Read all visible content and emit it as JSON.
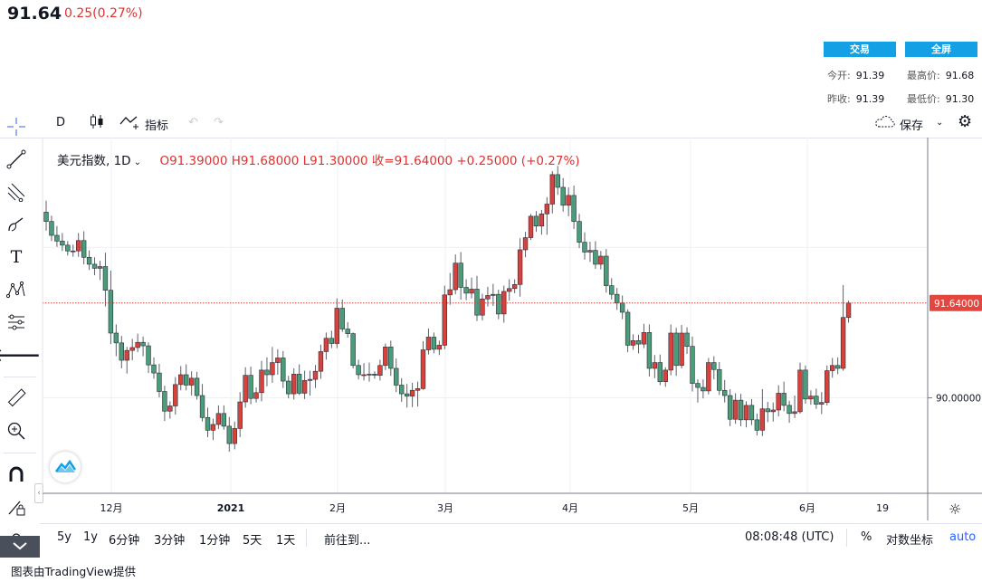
{
  "header": {
    "price": "91.64",
    "change": "0.25(0.27%)",
    "trade_button": "交易",
    "fullscreen_button": "全屏",
    "open_label": "今开:",
    "open_value": "91.39",
    "high_label": "最高价:",
    "high_value": "91.68",
    "prev_label": "昨收:",
    "prev_value": "91.39",
    "low_label": "最低价:",
    "low_value": "91.30"
  },
  "toolbar": {
    "interval": "D",
    "indicators": "指标",
    "save": "保存"
  },
  "legend": {
    "symbol": "美元指数, 1D",
    "ohlc": "O91.39000  H91.68000  L91.30000  收=91.64000  +0.25000 (+0.27%)"
  },
  "bottom": {
    "ranges": [
      "5y",
      "1y",
      "6分钟",
      "3分钟",
      "1分钟",
      "5天",
      "1天"
    ],
    "goto": "前往到...",
    "time": "08:08:48 (UTC)",
    "percent": "%",
    "log": "对数坐标",
    "auto": "auto"
  },
  "credit": "图表由TradingView提供",
  "colors": {
    "up": "#ef5350",
    "down": "#26a69a",
    "upFill": "#d8423c",
    "downFill": "#4b9c79",
    "accent": "#13a0e4"
  },
  "chart_data": {
    "type": "candlestick",
    "x_ticks": [
      "12月",
      "2021",
      "2月",
      "3月",
      "4月",
      "5月",
      "6月",
      "19"
    ],
    "y_ticks": [
      "90.00000"
    ],
    "last_price_label": "91.64000",
    "last_price": 91.64,
    "ylim": [
      88.35,
      94.5
    ],
    "candles": [
      [
        93.21,
        93.41,
        92.89,
        93.05
      ],
      [
        93.05,
        93.15,
        92.71,
        92.81
      ],
      [
        92.81,
        92.97,
        92.61,
        92.71
      ],
      [
        92.71,
        92.85,
        92.54,
        92.64
      ],
      [
        92.64,
        92.71,
        92.46,
        92.54
      ],
      [
        92.54,
        92.65,
        92.44,
        92.54
      ],
      [
        92.54,
        92.85,
        92.44,
        92.72
      ],
      [
        92.72,
        92.88,
        92.31,
        92.43
      ],
      [
        92.43,
        92.55,
        92.21,
        92.31
      ],
      [
        92.31,
        92.43,
        92.12,
        92.24
      ],
      [
        92.24,
        92.37,
        92.04,
        92.27
      ],
      [
        92.27,
        92.51,
        91.58,
        91.86
      ],
      [
        91.86,
        92.2,
        90.93,
        91.12
      ],
      [
        91.12,
        91.27,
        90.72,
        90.95
      ],
      [
        90.95,
        91.07,
        90.51,
        90.65
      ],
      [
        90.65,
        90.88,
        90.42,
        90.82
      ],
      [
        90.82,
        91.02,
        90.65,
        90.87
      ],
      [
        90.87,
        91.11,
        90.79,
        90.96
      ],
      [
        90.96,
        91.06,
        90.72,
        90.9
      ],
      [
        90.9,
        90.96,
        90.43,
        90.57
      ],
      [
        90.57,
        90.7,
        90.33,
        90.43
      ],
      [
        90.43,
        90.59,
        90.01,
        90.11
      ],
      [
        90.11,
        90.21,
        89.6,
        89.77
      ],
      [
        89.77,
        89.94,
        89.64,
        89.86
      ],
      [
        89.86,
        90.36,
        89.71,
        90.23
      ],
      [
        90.23,
        90.55,
        90.13,
        90.4
      ],
      [
        90.4,
        90.58,
        90.13,
        90.22
      ],
      [
        90.22,
        90.46,
        90.04,
        90.34
      ],
      [
        90.34,
        90.45,
        89.97,
        90.04
      ],
      [
        90.04,
        90.24,
        89.59,
        89.66
      ],
      [
        89.66,
        89.83,
        89.32,
        89.44
      ],
      [
        89.44,
        89.64,
        89.27,
        89.54
      ],
      [
        89.54,
        89.87,
        89.46,
        89.73
      ],
      [
        89.73,
        89.87,
        89.45,
        89.51
      ],
      [
        89.51,
        89.67,
        89.07,
        89.21
      ],
      [
        89.21,
        89.59,
        89.11,
        89.47
      ],
      [
        89.47,
        90.1,
        89.32,
        89.93
      ],
      [
        89.93,
        90.53,
        89.83,
        90.39
      ],
      [
        90.39,
        90.54,
        89.89,
        89.99
      ],
      [
        89.99,
        90.18,
        89.92,
        90.09
      ],
      [
        90.09,
        90.64,
        89.94,
        90.48
      ],
      [
        90.48,
        90.7,
        90.2,
        90.4
      ],
      [
        90.4,
        90.88,
        90.26,
        90.61
      ],
      [
        90.61,
        90.84,
        90.4,
        90.69
      ],
      [
        90.69,
        90.81,
        90.17,
        90.29
      ],
      [
        90.29,
        90.38,
        89.99,
        90.07
      ],
      [
        90.07,
        90.51,
        89.97,
        90.41
      ],
      [
        90.41,
        90.58,
        90.05,
        90.08
      ],
      [
        90.08,
        90.47,
        89.98,
        90.3
      ],
      [
        90.3,
        90.47,
        90.04,
        90.32
      ],
      [
        90.32,
        90.57,
        90.17,
        90.46
      ],
      [
        90.46,
        90.92,
        90.33,
        90.8
      ],
      [
        90.8,
        91.13,
        90.66,
        91.03
      ],
      [
        91.03,
        91.16,
        90.86,
        90.94
      ],
      [
        90.94,
        91.72,
        90.86,
        91.55
      ],
      [
        91.55,
        91.7,
        91.14,
        91.19
      ],
      [
        91.19,
        91.31,
        91.04,
        91.11
      ],
      [
        91.11,
        91.13,
        90.51,
        90.56
      ],
      [
        90.56,
        90.66,
        90.32,
        90.4
      ],
      [
        90.4,
        90.6,
        90.3,
        90.4
      ],
      [
        90.4,
        90.61,
        90.28,
        90.41
      ],
      [
        90.41,
        90.46,
        90.33,
        90.39
      ],
      [
        90.39,
        90.66,
        90.3,
        90.56
      ],
      [
        90.56,
        90.94,
        90.48,
        90.88
      ],
      [
        90.88,
        90.99,
        90.38,
        90.51
      ],
      [
        90.51,
        90.68,
        90.1,
        90.22
      ],
      [
        90.22,
        90.34,
        89.93,
        90.07
      ],
      [
        90.07,
        90.24,
        89.83,
        90.03
      ],
      [
        90.03,
        90.26,
        89.84,
        90.13
      ],
      [
        90.13,
        90.28,
        89.85,
        90.16
      ],
      [
        90.16,
        90.98,
        90.14,
        90.83
      ],
      [
        90.83,
        91.2,
        90.75,
        91.05
      ],
      [
        91.05,
        91.13,
        90.77,
        90.84
      ],
      [
        90.84,
        90.99,
        90.74,
        90.91
      ],
      [
        90.91,
        91.94,
        90.84,
        91.78
      ],
      [
        91.78,
        92.16,
        91.61,
        91.87
      ],
      [
        91.87,
        92.48,
        91.79,
        92.33
      ],
      [
        92.33,
        92.52,
        91.7,
        91.91
      ],
      [
        91.91,
        92.05,
        91.69,
        91.81
      ],
      [
        91.81,
        92.08,
        91.72,
        91.88
      ],
      [
        91.88,
        92.11,
        91.33,
        91.43
      ],
      [
        91.43,
        91.8,
        91.34,
        91.71
      ],
      [
        91.71,
        91.92,
        91.58,
        91.77
      ],
      [
        91.77,
        91.97,
        91.59,
        91.79
      ],
      [
        91.79,
        91.87,
        91.36,
        91.45
      ],
      [
        91.45,
        91.94,
        91.3,
        91.84
      ],
      [
        91.84,
        92.05,
        91.68,
        91.89
      ],
      [
        91.89,
        92.05,
        91.81,
        91.96
      ],
      [
        91.96,
        92.76,
        91.75,
        92.56
      ],
      [
        92.56,
        92.87,
        92.43,
        92.77
      ],
      [
        92.77,
        93.18,
        92.73,
        93.14
      ],
      [
        93.14,
        93.23,
        92.87,
        92.97
      ],
      [
        92.97,
        93.25,
        92.82,
        93.18
      ],
      [
        93.18,
        93.47,
        92.82,
        93.35
      ],
      [
        93.35,
        93.92,
        93.19,
        93.86
      ],
      [
        93.86,
        94.01,
        93.51,
        93.64
      ],
      [
        93.64,
        93.8,
        93.22,
        93.33
      ],
      [
        93.33,
        93.64,
        93.14,
        93.5
      ],
      [
        93.5,
        93.67,
        92.92,
        93.05
      ],
      [
        93.05,
        93.18,
        92.59,
        92.69
      ],
      [
        92.69,
        92.86,
        92.39,
        92.52
      ],
      [
        92.52,
        92.7,
        92.35,
        92.55
      ],
      [
        92.55,
        92.71,
        92.23,
        92.31
      ],
      [
        92.31,
        92.54,
        92.22,
        92.45
      ],
      [
        92.45,
        92.57,
        91.82,
        91.94
      ],
      [
        91.94,
        92.07,
        91.7,
        91.79
      ],
      [
        91.79,
        91.9,
        91.52,
        91.64
      ],
      [
        91.64,
        91.77,
        91.36,
        91.48
      ],
      [
        91.48,
        91.53,
        90.79,
        90.91
      ],
      [
        90.91,
        91.1,
        90.83,
        90.99
      ],
      [
        90.99,
        91.09,
        90.77,
        90.93
      ],
      [
        90.93,
        91.28,
        90.86,
        91.13
      ],
      [
        91.13,
        91.27,
        90.37,
        90.51
      ],
      [
        90.51,
        90.74,
        90.34,
        90.61
      ],
      [
        90.61,
        90.75,
        90.22,
        90.28
      ],
      [
        90.28,
        90.53,
        90.19,
        90.48
      ],
      [
        90.48,
        91.27,
        90.39,
        91.12
      ],
      [
        91.12,
        91.21,
        90.38,
        90.56
      ],
      [
        90.56,
        91.26,
        90.51,
        91.12
      ],
      [
        91.12,
        91.22,
        90.76,
        90.89
      ],
      [
        90.89,
        91.06,
        90.11,
        90.25
      ],
      [
        90.25,
        90.32,
        89.92,
        90.18
      ],
      [
        90.18,
        90.32,
        89.99,
        90.12
      ],
      [
        90.12,
        90.69,
        90.06,
        90.61
      ],
      [
        90.61,
        90.72,
        90.32,
        90.49
      ],
      [
        90.49,
        90.62,
        90.05,
        90.13
      ],
      [
        90.13,
        90.31,
        89.92,
        90.04
      ],
      [
        90.04,
        90.15,
        89.51,
        89.63
      ],
      [
        89.63,
        90.08,
        89.55,
        89.96
      ],
      [
        89.96,
        90.07,
        89.51,
        89.62
      ],
      [
        89.62,
        89.94,
        89.49,
        89.87
      ],
      [
        89.87,
        89.98,
        89.53,
        89.62
      ],
      [
        89.62,
        89.73,
        89.35,
        89.44
      ],
      [
        89.44,
        90.15,
        89.34,
        89.81
      ],
      [
        89.81,
        89.93,
        89.58,
        89.76
      ],
      [
        89.76,
        89.92,
        89.59,
        89.79
      ],
      [
        89.79,
        90.22,
        89.68,
        90.08
      ],
      [
        90.08,
        90.28,
        89.77,
        89.87
      ],
      [
        89.87,
        89.95,
        89.57,
        89.73
      ],
      [
        89.73,
        90.04,
        89.65,
        89.76
      ],
      [
        89.76,
        90.61,
        89.73,
        90.48
      ],
      [
        90.48,
        90.56,
        89.9,
        89.98
      ],
      [
        89.98,
        90.13,
        89.88,
        90.03
      ],
      [
        90.03,
        90.16,
        89.81,
        89.89
      ],
      [
        89.89,
        90.1,
        89.72,
        89.92
      ],
      [
        89.92,
        90.56,
        89.87,
        90.47
      ],
      [
        90.47,
        90.69,
        90.35,
        90.56
      ],
      [
        90.56,
        90.7,
        90.41,
        90.51
      ],
      [
        90.51,
        91.95,
        90.47,
        91.39
      ],
      [
        91.39,
        91.68,
        91.3,
        91.64
      ]
    ]
  }
}
